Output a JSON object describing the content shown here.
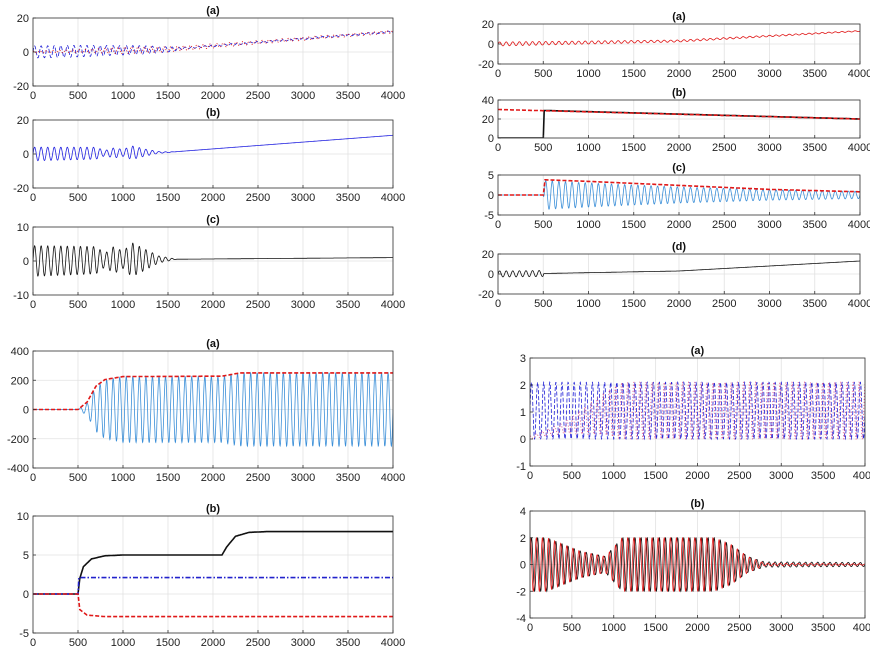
{
  "chart_data": [
    {
      "id": "A_a",
      "type": "line",
      "title": "(a)",
      "xlim": [
        0,
        4000
      ],
      "ylim": [
        -20,
        20
      ],
      "xticks": [
        0,
        500,
        1000,
        1500,
        2000,
        2500,
        3000,
        3500,
        4000
      ],
      "yticks": [
        -20,
        0,
        20
      ],
      "grid": true,
      "series": [
        {
          "color": "#1f1fd6",
          "style": "dash",
          "kind": "oscillation",
          "decay": {
            "x": [
              0,
              400,
              800,
              1200,
              1500,
              1700
            ],
            "amp": [
              3.5,
              3.5,
              3,
              2.5,
              1.5,
              0.5
            ]
          },
          "trend": {
            "x": [
              0,
              1500,
              4000
            ],
            "y": [
              0,
              1.5,
              12
            ]
          }
        },
        {
          "color": "#e01818",
          "style": "dot",
          "kind": "oscillation",
          "decay": {
            "x": [
              0,
              600,
              1000,
              1500,
              2500,
              4000
            ],
            "amp": [
              0.5,
              1,
              2,
              1.5,
              1,
              0.8
            ]
          },
          "trend": {
            "x": [
              0,
              1500,
              4000
            ],
            "y": [
              0,
              1.5,
              12
            ]
          }
        }
      ]
    },
    {
      "id": "A_b",
      "type": "line",
      "title": "(b)",
      "xlim": [
        0,
        4000
      ],
      "ylim": [
        -20,
        20
      ],
      "xticks": [
        0,
        500,
        1000,
        1500,
        2000,
        2500,
        3000,
        3500,
        4000
      ],
      "yticks": [
        -20,
        0,
        20
      ],
      "grid": true,
      "series": [
        {
          "color": "#2323e0",
          "style": "solid",
          "kind": "oscillation",
          "decay": {
            "x": [
              0,
              700,
              800,
              900,
              1000,
              1100,
              1250,
              1400,
              1600
            ],
            "amp": [
              4,
              3.5,
              1.5,
              3,
              2,
              4,
              2,
              0.5,
              0
            ]
          },
          "trend": {
            "x": [
              0,
              1500,
              4000
            ],
            "y": [
              0,
              1,
              11
            ]
          }
        }
      ]
    },
    {
      "id": "A_c",
      "type": "line",
      "title": "(c)",
      "xlim": [
        0,
        4000
      ],
      "ylim": [
        -10,
        10
      ],
      "xticks": [
        0,
        500,
        1000,
        1500,
        2000,
        2500,
        3000,
        3500,
        4000
      ],
      "yticks": [
        -10,
        0,
        10
      ],
      "grid": true,
      "series": [
        {
          "color": "#111111",
          "style": "solid",
          "kind": "oscillation",
          "decay": {
            "x": [
              0,
              700,
              800,
              900,
              1000,
              1100,
              1250,
              1400,
              1600
            ],
            "amp": [
              4.5,
              4,
              2,
              4,
              2.5,
              5,
              3,
              1,
              0
            ]
          },
          "trend": {
            "x": [
              0,
              1500,
              4000
            ],
            "y": [
              0,
              0.5,
              1
            ]
          }
        }
      ]
    },
    {
      "id": "B_a",
      "type": "line",
      "title": "(a)",
      "xlim": [
        0,
        4000
      ],
      "ylim": [
        -20,
        20
      ],
      "xticks": [
        0,
        500,
        1000,
        1500,
        2000,
        2500,
        3000,
        3500,
        4000
      ],
      "yticks": [
        -20,
        0,
        20
      ],
      "grid": true,
      "series": [
        {
          "color": "#e01818",
          "style": "solid",
          "kind": "oscillation",
          "decay": {
            "x": [
              0,
              1000,
              2000,
              4000
            ],
            "amp": [
              2,
              1.5,
              1,
              0.5
            ]
          },
          "trend": {
            "x": [
              0,
              2000,
              4000
            ],
            "y": [
              0,
              3,
              13
            ]
          }
        }
      ]
    },
    {
      "id": "B_b",
      "type": "line",
      "title": "(b)",
      "xlim": [
        0,
        4000
      ],
      "ylim": [
        0,
        40
      ],
      "xticks": [
        0,
        500,
        1000,
        1500,
        2000,
        2500,
        3000,
        3500,
        4000
      ],
      "yticks": [
        0,
        20,
        40
      ],
      "grid": true,
      "series": [
        {
          "color": "#111111",
          "style": "solid",
          "kind": "line",
          "x": [
            0,
            500,
            510,
            4000
          ],
          "y": [
            0,
            0,
            29,
            20
          ]
        },
        {
          "color": "#e01818",
          "style": "dash",
          "kind": "line",
          "x": [
            0,
            4000
          ],
          "y": [
            30,
            20
          ]
        }
      ]
    },
    {
      "id": "B_c",
      "type": "line",
      "title": "(c)",
      "xlim": [
        0,
        4000
      ],
      "ylim": [
        -5,
        5
      ],
      "xticks": [
        0,
        500,
        1000,
        1500,
        2000,
        2500,
        3000,
        3500,
        4000
      ],
      "yticks": [
        -5,
        0,
        5
      ],
      "grid": true,
      "series": [
        {
          "color": "#3b8fd8",
          "style": "solid",
          "kind": "oscillation",
          "decay": {
            "x": [
              0,
              499,
              520,
              1000,
              2000,
              3000,
              4000
            ],
            "amp": [
              0,
              0,
              3.6,
              3.0,
              2.0,
              1.3,
              0.9
            ]
          },
          "trend": {
            "x": [
              0,
              499,
              520,
              4000
            ],
            "y": [
              0,
              0,
              0,
              0
            ]
          }
        },
        {
          "color": "#e01818",
          "style": "dash",
          "kind": "line",
          "x": [
            0,
            500,
            520,
            1000,
            2000,
            3000,
            4000
          ],
          "y": [
            0,
            0,
            3.8,
            3.4,
            2.4,
            1.4,
            0.8
          ]
        }
      ]
    },
    {
      "id": "B_d",
      "type": "line",
      "title": "(d)",
      "xlim": [
        0,
        4000
      ],
      "ylim": [
        -20,
        20
      ],
      "xticks": [
        0,
        500,
        1000,
        1500,
        2000,
        2500,
        3000,
        3500,
        4000
      ],
      "yticks": [
        -20,
        0,
        20
      ],
      "grid": true,
      "series": [
        {
          "color": "#111111",
          "style": "solid",
          "kind": "oscillation",
          "decay": {
            "x": [
              0,
              499,
              510,
              4000
            ],
            "amp": [
              3,
              3,
              0,
              0
            ]
          },
          "trend": {
            "x": [
              0,
              500,
              2000,
              4000
            ],
            "y": [
              0,
              0.5,
              3,
              13
            ]
          }
        }
      ]
    },
    {
      "id": "C_a",
      "type": "line",
      "title": "(a)",
      "xlim": [
        0,
        4000
      ],
      "ylim": [
        -400,
        400
      ],
      "xticks": [
        0,
        500,
        1000,
        1500,
        2000,
        2500,
        3000,
        3500,
        4000
      ],
      "yticks": [
        -400,
        -200,
        0,
        200,
        400
      ],
      "grid": true,
      "series": [
        {
          "color": "#3b8fd8",
          "style": "solid",
          "kind": "oscillation",
          "decay": {
            "x": [
              0,
              500,
              600,
              700,
              800,
              1000,
              2100,
              2300,
              4000
            ],
            "amp": [
              0,
              0,
              40,
              150,
              200,
              225,
              225,
              250,
              250
            ]
          },
          "trend": {
            "x": [
              0,
              4000
            ],
            "y": [
              0,
              0
            ]
          }
        },
        {
          "color": "#e01818",
          "style": "dash",
          "kind": "line",
          "x": [
            0,
            500,
            600,
            700,
            800,
            1000,
            2100,
            2300,
            4000
          ],
          "y": [
            0,
            0,
            50,
            160,
            205,
            225,
            228,
            250,
            250
          ]
        }
      ]
    },
    {
      "id": "C_b",
      "type": "line",
      "title": "(b)",
      "xlim": [
        0,
        4000
      ],
      "ylim": [
        -5,
        10
      ],
      "xticks": [
        0,
        500,
        1000,
        1500,
        2000,
        2500,
        3000,
        3500,
        4000
      ],
      "yticks": [
        -5,
        0,
        5,
        10
      ],
      "grid": true,
      "series": [
        {
          "color": "#111111",
          "style": "solid",
          "kind": "line",
          "x": [
            0,
            500,
            520,
            560,
            650,
            800,
            1000,
            2100,
            2150,
            2250,
            2400,
            2600,
            4000
          ],
          "y": [
            0,
            0,
            2,
            3.5,
            4.5,
            4.9,
            5,
            5,
            6,
            7.4,
            7.9,
            8,
            8
          ]
        },
        {
          "color": "#2222cc",
          "style": "dashdot",
          "kind": "line",
          "x": [
            0,
            500,
            510,
            4000
          ],
          "y": [
            0,
            0,
            2.1,
            2.1
          ]
        },
        {
          "color": "#e01818",
          "style": "dash",
          "kind": "line",
          "x": [
            0,
            500,
            520,
            600,
            800,
            4000
          ],
          "y": [
            0,
            0,
            -2,
            -2.7,
            -2.9,
            -2.9
          ]
        }
      ]
    },
    {
      "id": "D_a",
      "type": "line",
      "title": "(a)",
      "xlim": [
        0,
        4000
      ],
      "ylim": [
        -1,
        3
      ],
      "xticks": [
        0,
        500,
        1000,
        1500,
        2000,
        2500,
        3000,
        3500,
        4000
      ],
      "yticks": [
        -1,
        0,
        1,
        2,
        3
      ],
      "grid": true,
      "series": [
        {
          "color": "#1f1fd6",
          "style": "dash",
          "kind": "oscillation",
          "decay": {
            "x": [
              0,
              4000
            ],
            "amp": [
              1.05,
              1.05
            ]
          },
          "trend": {
            "x": [
              0,
              4000
            ],
            "y": [
              1.05,
              1.05
            ]
          }
        },
        {
          "color": "#e05a8a",
          "style": "dot",
          "kind": "oscillation",
          "decay": {
            "x": [
              0,
              400,
              900,
              1100,
              4000
            ],
            "amp": [
              0.05,
              0.2,
              0.8,
              1.05,
              1.05
            ]
          },
          "trend": {
            "x": [
              0,
              400,
              900,
              1100,
              4000
            ],
            "y": [
              0.05,
              0.4,
              0.95,
              1.05,
              1.05
            ]
          }
        }
      ]
    },
    {
      "id": "D_b",
      "type": "line",
      "title": "(b)",
      "xlim": [
        0,
        4000
      ],
      "ylim": [
        -4,
        4
      ],
      "xticks": [
        0,
        500,
        1000,
        1500,
        2000,
        2500,
        3000,
        3500,
        4000
      ],
      "yticks": [
        -4,
        -2,
        0,
        2,
        4
      ],
      "grid": true,
      "series": [
        {
          "color": "#111111",
          "style": "solid",
          "kind": "oscillation",
          "decay": {
            "x": [
              0,
              200,
              600,
              900,
              1100,
              2200,
              2400,
              2600,
              2800,
              4000
            ],
            "amp": [
              2,
              2,
              1,
              0.6,
              2,
              2,
              1.5,
              0.6,
              0.2,
              0.15
            ]
          },
          "trend": {
            "x": [
              0,
              4000
            ],
            "y": [
              0,
              0
            ]
          }
        },
        {
          "color": "#e01818",
          "style": "solid",
          "kind": "oscillation",
          "decay": {
            "x": [
              0,
              200,
              600,
              900,
              1100,
              2200,
              2400,
              2600,
              2800,
              4000
            ],
            "amp": [
              2,
              2,
              1,
              0.6,
              2,
              2,
              1.5,
              0.6,
              0.1,
              0.05
            ]
          },
          "trend": {
            "x": [
              0,
              4000
            ],
            "y": [
              0,
              0
            ]
          }
        }
      ]
    }
  ]
}
